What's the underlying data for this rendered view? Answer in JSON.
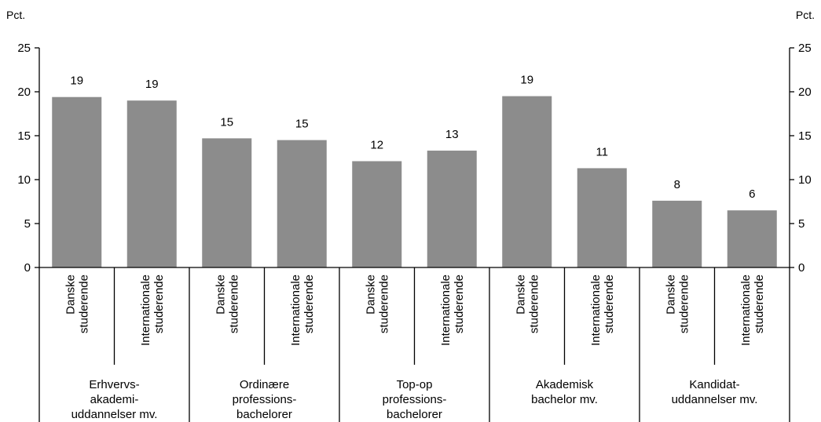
{
  "chart_data": {
    "type": "bar",
    "y_unit_left": "Pct.",
    "y_unit_right": "Pct.",
    "ylim": [
      0,
      25
    ],
    "yticks": [
      0,
      5,
      10,
      15,
      20,
      25
    ],
    "grid": false,
    "bar_color": "#8c8c8c",
    "categories": [
      "Danske studerende",
      "Internationale studerende",
      "Danske studerende",
      "Internationale studerende",
      "Danske studerende",
      "Internationale studerende",
      "Danske studerende",
      "Internationale studerende",
      "Danske studerende",
      "Internationale studerende"
    ],
    "category_lines": [
      [
        "Danske",
        "studerende"
      ],
      [
        "Internationale",
        "studerende"
      ],
      [
        "Danske",
        "studerende"
      ],
      [
        "Internationale",
        "studerende"
      ],
      [
        "Danske",
        "studerende"
      ],
      [
        "Internationale",
        "studerende"
      ],
      [
        "Danske",
        "studerende"
      ],
      [
        "Internationale",
        "studerende"
      ],
      [
        "Danske",
        "studerende"
      ],
      [
        "Internationale",
        "studerende"
      ]
    ],
    "values": [
      19.4,
      19.0,
      14.7,
      14.5,
      12.1,
      13.3,
      19.5,
      11.3,
      7.6,
      6.5
    ],
    "data_labels": [
      "19",
      "19",
      "15",
      "15",
      "12",
      "13",
      "19",
      "11",
      "8",
      "6"
    ],
    "groups": [
      {
        "label_lines": [
          "Erhvervs-",
          "akademi-",
          "uddannelser mv."
        ]
      },
      {
        "label_lines": [
          "Ordinære",
          "professions-",
          "bachelorer"
        ]
      },
      {
        "label_lines": [
          "Top-op",
          "professions-",
          "bachelorer"
        ]
      },
      {
        "label_lines": [
          "Akademisk",
          "bachelor mv."
        ]
      },
      {
        "label_lines": [
          "Kandidat-",
          "uddannelser mv."
        ]
      }
    ]
  }
}
